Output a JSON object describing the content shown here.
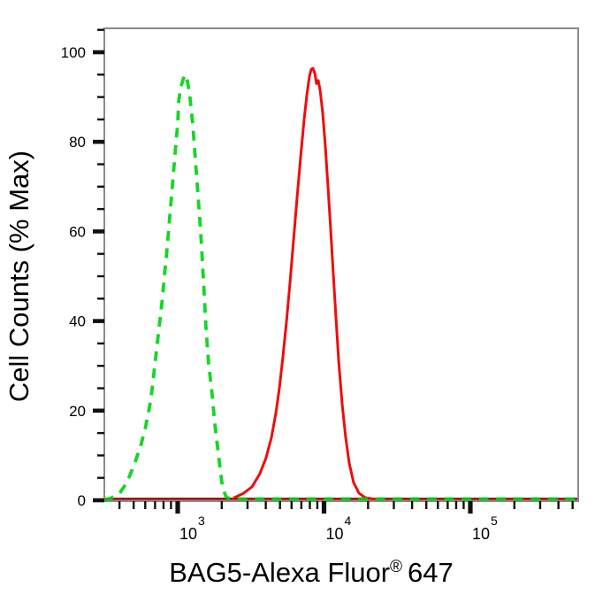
{
  "figure": {
    "y_label": "Cell Counts (% Max)",
    "x_label_main": "BAG5-Alexa Fluor",
    "x_label_sup": "®",
    "x_label_suffix": "647"
  },
  "chart_data": {
    "type": "line",
    "subtype": "flow-cytometry-histogram-overlay",
    "title": "",
    "xlabel": "BAG5-Alexa Fluor® 647",
    "ylabel": "Cell Counts (% Max)",
    "x_scale": "log",
    "x_range": [
      315,
      545000
    ],
    "y_range": [
      0,
      105
    ],
    "grid": false,
    "legend": "none",
    "colors": {
      "green_curve": "#00d414",
      "red_curve": "#ee0d0d",
      "red_baseline": "#9e0404",
      "frame": "#8a8a8a",
      "tick": "#111111"
    },
    "x_ticks_major": [
      {
        "value": 1000,
        "label_base": "10",
        "label_exp": "3"
      },
      {
        "value": 10000,
        "label_base": "10",
        "label_exp": "4"
      },
      {
        "value": 100000,
        "label_base": "10",
        "label_exp": "5"
      }
    ],
    "x_ticks_minor": [
      400,
      500,
      600,
      700,
      800,
      900,
      2000,
      3000,
      4000,
      5000,
      6000,
      7000,
      8000,
      9000,
      20000,
      30000,
      40000,
      50000,
      60000,
      70000,
      80000,
      90000,
      200000,
      300000,
      400000,
      500000
    ],
    "y_ticks_major": {
      "values": [
        0,
        20,
        40,
        60,
        80,
        100
      ],
      "labels": [
        "0",
        "20",
        "40",
        "60",
        "80",
        "100"
      ]
    },
    "y_minor_step": 5,
    "y_minor_max": 105,
    "series": [
      {
        "name": "green-dashed-curve",
        "style": "dashed",
        "color": "#00d414",
        "peak_x": 1120,
        "peak_y": 95,
        "points": [
          [
            315,
            0
          ],
          [
            350,
            0.5
          ],
          [
            400,
            1.5
          ],
          [
            450,
            4
          ],
          [
            505,
            8
          ],
          [
            557,
            12
          ],
          [
            600,
            16
          ],
          [
            643,
            21
          ],
          [
            670,
            25
          ],
          [
            696,
            30
          ],
          [
            725,
            35
          ],
          [
            755,
            40
          ],
          [
            786,
            45
          ],
          [
            810,
            50
          ],
          [
            835,
            54
          ],
          [
            860,
            59
          ],
          [
            886,
            64
          ],
          [
            913,
            69
          ],
          [
            941,
            74
          ],
          [
            969,
            79
          ],
          [
            1000,
            84
          ],
          [
            1015,
            89
          ],
          [
            1045,
            92
          ],
          [
            1090,
            94
          ],
          [
            1120,
            95
          ],
          [
            1150,
            94.3
          ],
          [
            1180,
            92.5
          ],
          [
            1216,
            89.5
          ],
          [
            1267,
            84
          ],
          [
            1320,
            76
          ],
          [
            1377,
            68
          ],
          [
            1435,
            60
          ],
          [
            1497,
            49.5
          ],
          [
            1560,
            38.5
          ],
          [
            1627,
            30.5
          ],
          [
            1720,
            23.5
          ],
          [
            1794,
            17
          ],
          [
            1870,
            12
          ],
          [
            1950,
            7
          ],
          [
            2030,
            2.6
          ],
          [
            2150,
            0.7
          ],
          [
            2340,
            0.3
          ],
          [
            3000,
            0.3
          ],
          [
            545000,
            0.3
          ]
        ]
      },
      {
        "name": "red-solid-curve",
        "style": "solid",
        "color": "#ee0d0d",
        "peak_x": 8400,
        "peak_y": 96.4,
        "points": [
          [
            2400,
            0.3
          ],
          [
            2440,
            0.6
          ],
          [
            2800,
            1.5
          ],
          [
            3220,
            3
          ],
          [
            3650,
            6
          ],
          [
            4020,
            9.5
          ],
          [
            4370,
            14
          ],
          [
            4690,
            19.5
          ],
          [
            4950,
            25
          ],
          [
            5240,
            32
          ],
          [
            5540,
            40
          ],
          [
            5850,
            48.5
          ],
          [
            6190,
            58
          ],
          [
            6540,
            67.5
          ],
          [
            6920,
            76.5
          ],
          [
            7310,
            85
          ],
          [
            7630,
            90.5
          ],
          [
            7940,
            94.5
          ],
          [
            8170,
            96.2
          ],
          [
            8400,
            96.4
          ],
          [
            8650,
            95.3
          ],
          [
            8890,
            93
          ],
          [
            9140,
            93.7
          ],
          [
            9400,
            91.5
          ],
          [
            9800,
            86.5
          ],
          [
            10210,
            79
          ],
          [
            10650,
            70
          ],
          [
            11100,
            60.5
          ],
          [
            11570,
            50.5
          ],
          [
            12080,
            40.5
          ],
          [
            12590,
            31
          ],
          [
            13300,
            21.5
          ],
          [
            14060,
            14
          ],
          [
            14860,
            8.3
          ],
          [
            15920,
            4
          ],
          [
            17330,
            1.6
          ],
          [
            19100,
            0.6
          ],
          [
            21600,
            0.3
          ],
          [
            25000,
            0.3
          ]
        ]
      }
    ]
  }
}
